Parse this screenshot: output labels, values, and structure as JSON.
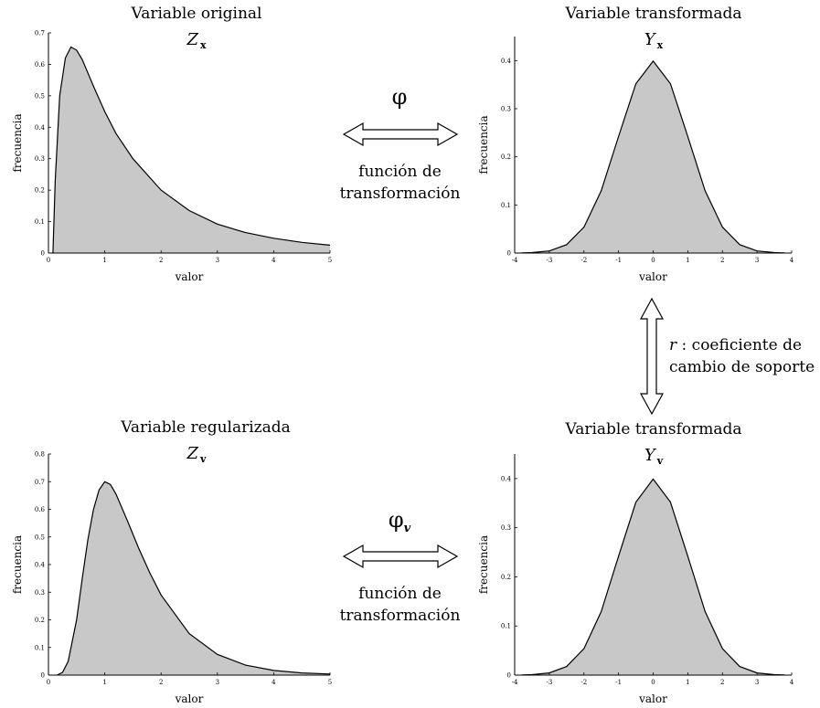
{
  "top_left": {
    "title": "Variable original",
    "symbol": "Z",
    "symbol_sub": "x"
  },
  "top_right": {
    "title": "Variable transformada",
    "symbol": "Y",
    "symbol_sub": "x"
  },
  "bottom_left": {
    "title": "Variable regularizada",
    "symbol": "Z",
    "symbol_sub": "v"
  },
  "bottom_right": {
    "title": "Variable transformada",
    "symbol": "Y",
    "symbol_sub": "v"
  },
  "top_arrow": {
    "symbol": "φ",
    "line1": "función de",
    "line2": "transformación"
  },
  "bottom_arrow": {
    "symbol": "φ",
    "symbol_sub": "v",
    "line1": "función de",
    "line2": "transformación"
  },
  "vertical_arrow": {
    "var": "r",
    "line1": " : coeficiente de",
    "line2": "cambio de soporte"
  },
  "chart_data": [
    {
      "id": "tl",
      "type": "area",
      "xlabel": "valor",
      "ylabel": "frecuencia",
      "xlim": [
        0,
        5
      ],
      "ylim": [
        0,
        0.7
      ],
      "xticks": [
        0,
        1,
        2,
        3,
        4,
        5
      ],
      "xtick_labels": [
        "0",
        "1",
        "2",
        "3",
        "4",
        "5"
      ],
      "yticks": [
        0.1,
        0.2,
        0.3,
        0.4,
        0.5,
        0.6,
        0.7
      ],
      "ytick_labels": [
        "0.1",
        "0.2",
        "0.3",
        "0.4",
        "0.5",
        "0.6",
        "0.7"
      ],
      "x": [
        0.08,
        0.12,
        0.2,
        0.3,
        0.4,
        0.5,
        0.6,
        0.8,
        1.0,
        1.2,
        1.5,
        2.0,
        2.5,
        3.0,
        3.5,
        4.0,
        4.5,
        5.0
      ],
      "y": [
        0.0,
        0.23,
        0.5,
        0.62,
        0.655,
        0.645,
        0.615,
        0.53,
        0.45,
        0.38,
        0.3,
        0.2,
        0.135,
        0.092,
        0.065,
        0.047,
        0.034,
        0.025
      ]
    },
    {
      "id": "tr",
      "type": "area",
      "xlabel": "valor",
      "ylabel": "frecuencia",
      "xlim": [
        -4,
        4
      ],
      "ylim": [
        0,
        0.45
      ],
      "xticks": [
        -4,
        -3,
        -2,
        -1,
        0,
        1,
        2,
        3,
        4
      ],
      "xtick_labels": [
        "-4",
        "-3",
        "-2",
        "-1",
        "0",
        "1",
        "2",
        "3",
        "4"
      ],
      "yticks": [
        0,
        0.1,
        0.2,
        0.3,
        0.4
      ],
      "ytick_labels": [
        "0",
        "0.1",
        "0.2",
        "0.3",
        "0.4"
      ],
      "x": [
        -3.8,
        -3.5,
        -3.0,
        -2.5,
        -2.0,
        -1.5,
        -1.0,
        -0.5,
        0.0,
        0.5,
        1.0,
        1.5,
        2.0,
        2.5,
        3.0,
        3.5,
        3.8
      ],
      "y": [
        0.0003,
        0.0009,
        0.0044,
        0.0175,
        0.054,
        0.1295,
        0.242,
        0.352,
        0.399,
        0.352,
        0.242,
        0.1295,
        0.054,
        0.0175,
        0.0044,
        0.0009,
        0.0003
      ]
    },
    {
      "id": "bl",
      "type": "area",
      "xlabel": "valor",
      "ylabel": "frecuencia",
      "xlim": [
        0,
        5
      ],
      "ylim": [
        0,
        0.8
      ],
      "xticks": [
        0,
        1,
        2,
        3,
        4,
        5
      ],
      "xtick_labels": [
        "0",
        "1",
        "2",
        "3",
        "4",
        "5"
      ],
      "yticks": [
        0.1,
        0.2,
        0.3,
        0.4,
        0.5,
        0.6,
        0.7,
        0.8
      ],
      "ytick_labels": [
        "0.1",
        "0.2",
        "0.3",
        "0.4",
        "0.5",
        "0.6",
        "0.7",
        "0.8"
      ],
      "x": [
        0.15,
        0.25,
        0.35,
        0.5,
        0.6,
        0.7,
        0.8,
        0.9,
        1.0,
        1.1,
        1.2,
        1.4,
        1.6,
        1.8,
        2.0,
        2.5,
        3.0,
        3.5,
        4.0,
        4.5,
        5.0
      ],
      "y": [
        0.0,
        0.01,
        0.05,
        0.2,
        0.35,
        0.49,
        0.6,
        0.67,
        0.7,
        0.69,
        0.655,
        0.56,
        0.46,
        0.37,
        0.29,
        0.15,
        0.075,
        0.036,
        0.017,
        0.008,
        0.004
      ]
    },
    {
      "id": "br",
      "type": "area",
      "xlabel": "valor",
      "ylabel": "frecuencia",
      "xlim": [
        -4,
        4
      ],
      "ylim": [
        0,
        0.45
      ],
      "xticks": [
        -4,
        -3,
        -2,
        -1,
        0,
        1,
        2,
        3,
        4
      ],
      "xtick_labels": [
        "-4",
        "-3",
        "-2",
        "-1",
        "0",
        "1",
        "2",
        "3",
        "4"
      ],
      "yticks": [
        0,
        0.1,
        0.2,
        0.3,
        0.4
      ],
      "ytick_labels": [
        "0",
        "0.1",
        "0.2",
        "0.3",
        "0.4"
      ],
      "x": [
        -3.8,
        -3.5,
        -3.0,
        -2.5,
        -2.0,
        -1.5,
        -1.0,
        -0.5,
        0.0,
        0.5,
        1.0,
        1.5,
        2.0,
        2.5,
        3.0,
        3.5,
        3.8
      ],
      "y": [
        0.0003,
        0.0009,
        0.0044,
        0.0175,
        0.054,
        0.1295,
        0.242,
        0.352,
        0.399,
        0.352,
        0.242,
        0.1295,
        0.054,
        0.0175,
        0.0044,
        0.0009,
        0.0003
      ]
    }
  ]
}
